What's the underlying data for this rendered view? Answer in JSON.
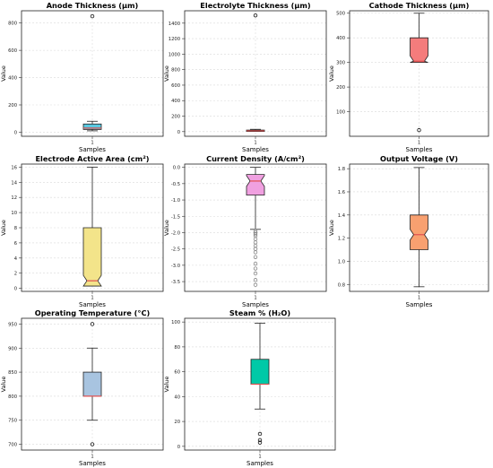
{
  "chart_data": [
    {
      "type": "box",
      "title": "Anode Thickness (µm)",
      "xlabel": "Samples",
      "ylabel": "Value",
      "categories": [
        "1"
      ],
      "ylim": [
        -30,
        890
      ],
      "yticks": [
        0,
        200,
        400,
        600,
        800
      ],
      "notch": false,
      "stats": {
        "whislo": 10,
        "q1": 20,
        "med": 30,
        "q3": 60,
        "whishi": 80,
        "fliers": [
          850
        ]
      },
      "fill": "#5bc8e0",
      "median_color": "#e05050"
    },
    {
      "type": "box",
      "title": "Electrolyte Thickness (µm)",
      "xlabel": "Samples",
      "ylabel": "Value",
      "categories": [
        "1"
      ],
      "ylim": [
        -60,
        1560
      ],
      "yticks": [
        0,
        200,
        400,
        600,
        800,
        1000,
        1200,
        1400
      ],
      "notch": false,
      "stats": {
        "whislo": 3,
        "q1": 5,
        "med": 10,
        "q3": 20,
        "whishi": 30,
        "fliers": [
          1500
        ]
      },
      "fill": "#c0504d",
      "median_color": "#e05050"
    },
    {
      "type": "box",
      "title": "Cathode Thickness (µm)",
      "xlabel": "Samples",
      "ylabel": "Value",
      "categories": [
        "1"
      ],
      "ylim": [
        0,
        510
      ],
      "yticks": [
        100,
        200,
        300,
        400,
        500
      ],
      "notch": true,
      "stats": {
        "whislo": 300,
        "q1": 300,
        "med": 305,
        "q3": 400,
        "whishi": 500,
        "fliers": [
          25
        ]
      },
      "fill": "#f47c7c",
      "median_color": "#e05050"
    },
    {
      "type": "box",
      "title": "Electrode Active Area (cm²)",
      "xlabel": "Samples",
      "ylabel": "Value",
      "categories": [
        "1"
      ],
      "ylim": [
        -0.4,
        16.4
      ],
      "yticks": [
        0,
        2,
        4,
        6,
        8,
        10,
        12,
        14,
        16
      ],
      "notch": true,
      "stats": {
        "whislo": 0.3,
        "q1": 0.3,
        "med": 1.0,
        "q3": 8.0,
        "whishi": 16,
        "fliers": []
      },
      "fill": "#f3e48a",
      "median_color": "#e05050"
    },
    {
      "type": "box",
      "title": "Current Density (A/cm²)",
      "xlabel": "Samples",
      "ylabel": "Value",
      "categories": [
        "1"
      ],
      "ylim": [
        -3.8,
        0.1
      ],
      "yticks": [
        -3.5,
        -3.0,
        -2.5,
        -2.0,
        -1.5,
        -1.0,
        -0.5,
        0.0
      ],
      "notch": true,
      "stats": {
        "whislo": -1.9,
        "q1": -0.85,
        "med": -0.42,
        "q3": -0.22,
        "whishi": 0.0,
        "fliers": [
          -1.95,
          -2.0,
          -2.05,
          -2.1,
          -2.2,
          -2.3,
          -2.4,
          -2.5,
          -2.6,
          -2.75,
          -2.95,
          -3.1,
          -3.25,
          -3.45,
          -3.6
        ]
      },
      "fill": "#f0a0e0",
      "median_color": "#e05050"
    },
    {
      "type": "box",
      "title": "Output Voltage (V)",
      "xlabel": "Samples",
      "ylabel": "Value",
      "categories": [
        "1"
      ],
      "ylim": [
        0.74,
        1.84
      ],
      "yticks": [
        0.8,
        1.0,
        1.2,
        1.4,
        1.6,
        1.8
      ],
      "notch": true,
      "stats": {
        "whislo": 0.78,
        "q1": 1.1,
        "med": 1.23,
        "q3": 1.4,
        "whishi": 1.81,
        "fliers": []
      },
      "fill": "#f8a070",
      "median_color": "#e05050"
    },
    {
      "type": "box",
      "title": "Operating Temperature (°C)",
      "xlabel": "Samples",
      "ylabel": "Value",
      "categories": [
        "1"
      ],
      "ylim": [
        688,
        962
      ],
      "yticks": [
        700,
        750,
        800,
        850,
        900,
        950
      ],
      "notch": false,
      "stats": {
        "whislo": 750,
        "q1": 800,
        "med": 800,
        "q3": 850,
        "whishi": 900,
        "fliers": [
          950,
          700
        ]
      },
      "fill": "#a8c4e0",
      "median_color": "#e05050"
    },
    {
      "type": "box",
      "title": "Steam % (H₂O)",
      "xlabel": "Samples",
      "ylabel": "Value",
      "categories": [
        "1"
      ],
      "ylim": [
        -3,
        103
      ],
      "yticks": [
        0,
        20,
        40,
        60,
        80,
        100
      ],
      "notch": false,
      "stats": {
        "whislo": 30,
        "q1": 50,
        "med": 50,
        "q3": 70,
        "whishi": 99,
        "fliers": [
          10,
          5,
          3
        ]
      },
      "fill": "#00c9a7",
      "median_color": "#e05050"
    }
  ]
}
